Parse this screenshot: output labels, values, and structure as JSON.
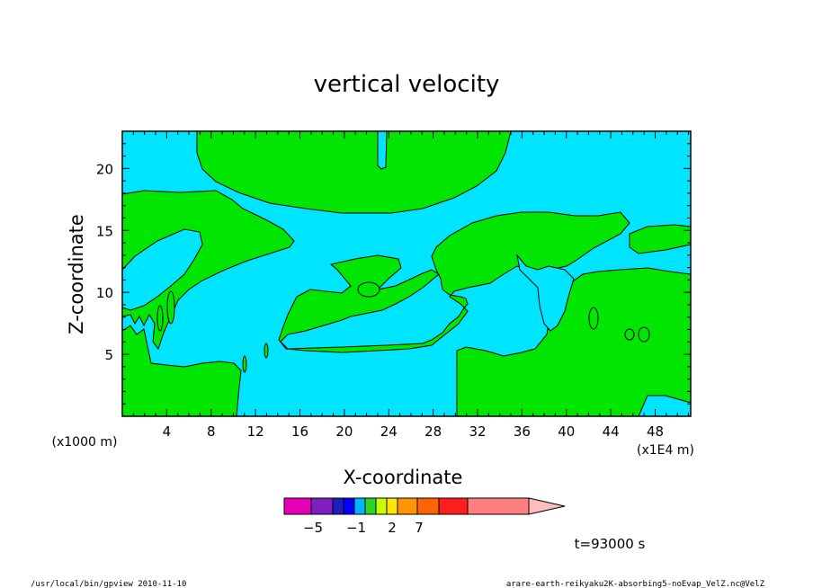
{
  "chart_data": {
    "type": "heatmap",
    "title": "vertical velocity",
    "xlabel": "X-coordinate",
    "ylabel": "Z-coordinate",
    "x_unit_label": "(x1E4 m)",
    "y_unit_label": "(x1000 m)",
    "xlim": [
      0,
      51.2
    ],
    "ylim": [
      0,
      23
    ],
    "x_ticks": [
      "4",
      "8",
      "12",
      "16",
      "20",
      "24",
      "28",
      "32",
      "36",
      "40",
      "44",
      "48"
    ],
    "y_ticks": [
      "5",
      "10",
      "15",
      "20"
    ],
    "colorbar": {
      "colors": [
        "#e600b4",
        "#7f1fbf",
        "#1f1fbf",
        "#0000ff",
        "#00b4ff",
        "#2bd62b",
        "#c8ff00",
        "#ffe600",
        "#ff9600",
        "#ff6400",
        "#ff1e1e",
        "#ff7f7f",
        "#ffbcbc"
      ],
      "labels": [
        "-5",
        "-1",
        "2",
        "7"
      ]
    },
    "region_colors": {
      "negative": "#00e5ff",
      "positive": "#00e600"
    },
    "time_label": "t=93000 s"
  },
  "footer": {
    "left": "/usr/local/bin/gpview  2010-11-10",
    "right": "arare-earth-reikyaku2K-absorbing5-noEvap_VelZ.nc@VelZ"
  }
}
